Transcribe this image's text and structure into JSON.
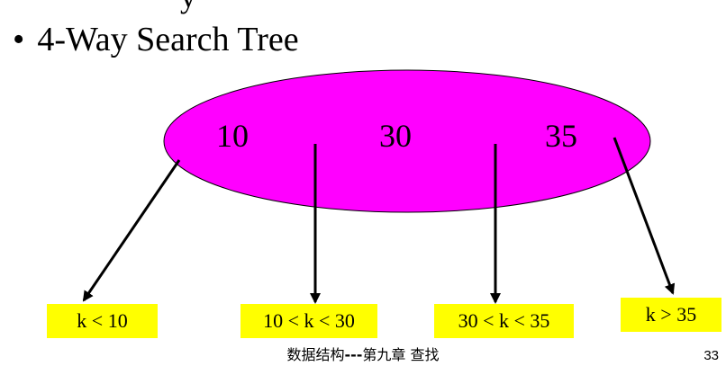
{
  "slide": {
    "top_fragment": "y",
    "bullet_symbol": "•",
    "bullet_text": "4-Way Search Tree"
  },
  "node": {
    "fill_color": "#ff00ff",
    "keys": [
      "10",
      "30",
      "35"
    ]
  },
  "children": [
    {
      "label": "k < 10"
    },
    {
      "label": "10 < k < 30"
    },
    {
      "label": "30 < k < 35"
    },
    {
      "label": "k > 35"
    }
  ],
  "colors": {
    "box_fill": "#ffff00",
    "arrow": "#000000"
  },
  "footer": {
    "title_a": "数据结构",
    "separator": "---",
    "title_b": "第九章 查找",
    "page_number": "33"
  }
}
